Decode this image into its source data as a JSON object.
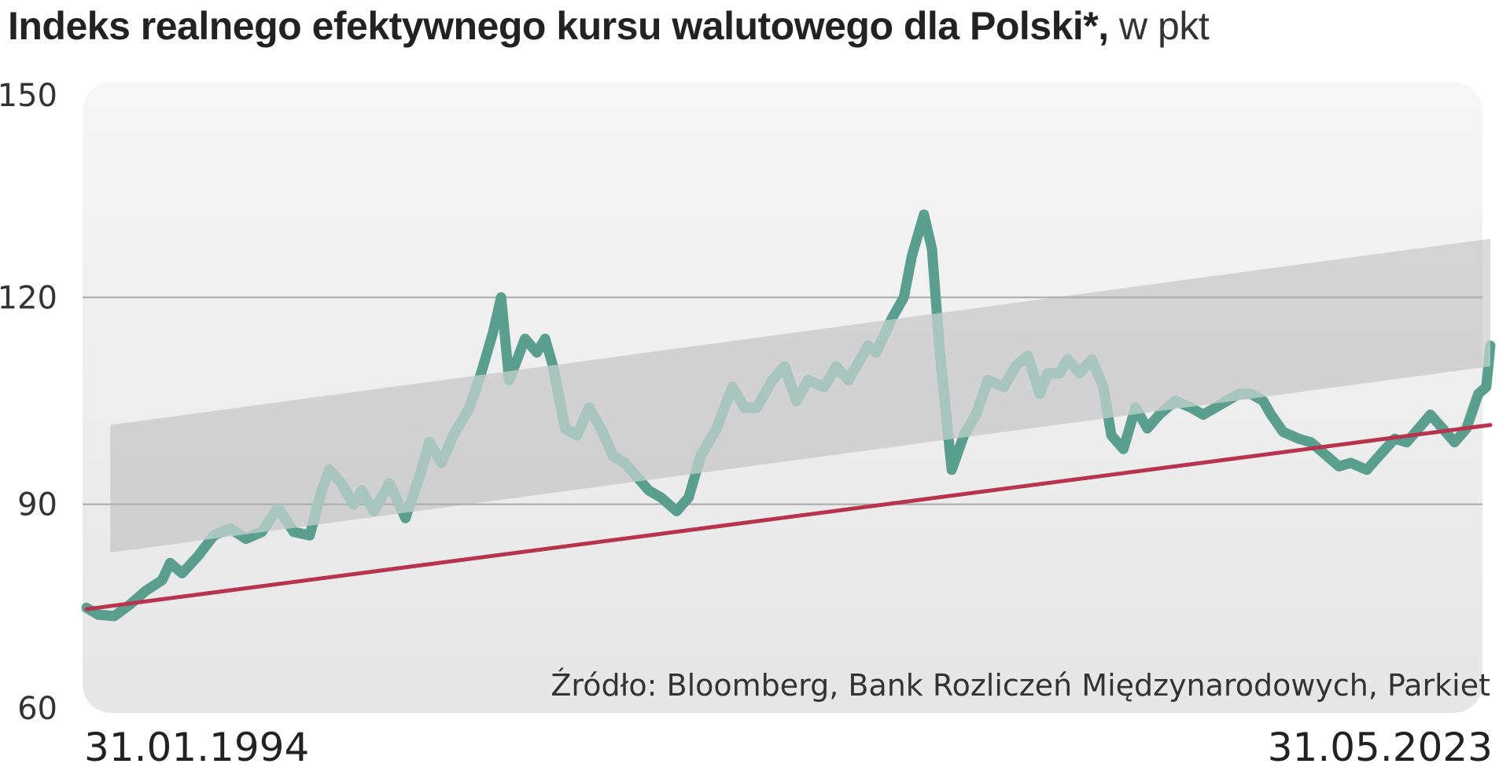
{
  "title": {
    "main": "Indeks realnego efektywnego kursu walutowego dla Polski*,",
    "unit": " w pkt"
  },
  "chart_data": {
    "type": "line",
    "ylim": [
      60,
      150
    ],
    "yticks": [
      "150",
      "120",
      "90",
      "60"
    ],
    "xlim": [
      "1994-01-31",
      "2023-05-31"
    ],
    "x_start_label": "31.01.1994",
    "x_end_label": "31.05.2023",
    "source": "Źródło: Bloomberg, Bank Rozliczeń Międzynarodowych, Parkiet",
    "trend_line": {
      "start": [
        "1994-01-31",
        74.8
      ],
      "end": [
        "2023-05-31",
        101.5
      ]
    },
    "band": {
      "start": {
        "date": "1994-07-31",
        "low": 83,
        "high": 101.5
      },
      "end": {
        "date": "2023-05-31",
        "low": 110,
        "high": 128.5
      }
    },
    "series": [
      {
        "color": "#5a9e8e",
        "points": [
          [
            "1994-01-31",
            75
          ],
          [
            "1994-04-30",
            74
          ],
          [
            "1994-08-31",
            73.8
          ],
          [
            "1994-12-31",
            75.5
          ],
          [
            "1995-04-30",
            77.5
          ],
          [
            "1995-08-31",
            79
          ],
          [
            "1995-10-31",
            81.5
          ],
          [
            "1996-01-31",
            80
          ],
          [
            "1996-05-31",
            82.5
          ],
          [
            "1996-09-30",
            85.5
          ],
          [
            "1997-01-31",
            86.5
          ],
          [
            "1997-05-31",
            85
          ],
          [
            "1997-09-30",
            86
          ],
          [
            "1998-01-31",
            89.5
          ],
          [
            "1998-05-31",
            86
          ],
          [
            "1998-09-30",
            85.5
          ],
          [
            "1998-12-31",
            92
          ],
          [
            "1999-02-28",
            95
          ],
          [
            "1999-05-31",
            93
          ],
          [
            "1999-08-31",
            90
          ],
          [
            "1999-10-31",
            92
          ],
          [
            "2000-01-31",
            89
          ],
          [
            "2000-05-31",
            93
          ],
          [
            "2000-09-30",
            88
          ],
          [
            "2001-01-31",
            95
          ],
          [
            "2001-03-31",
            99
          ],
          [
            "2001-06-30",
            96
          ],
          [
            "2001-09-30",
            100
          ],
          [
            "2002-01-31",
            104
          ],
          [
            "2002-04-30",
            109
          ],
          [
            "2002-07-31",
            115
          ],
          [
            "2002-09-30",
            120
          ],
          [
            "2002-11-30",
            108
          ],
          [
            "2003-03-31",
            114
          ],
          [
            "2003-06-30",
            112
          ],
          [
            "2003-08-31",
            114
          ],
          [
            "2003-10-31",
            110
          ],
          [
            "2004-01-31",
            101
          ],
          [
            "2004-04-30",
            100
          ],
          [
            "2004-07-31",
            104
          ],
          [
            "2004-10-31",
            101
          ],
          [
            "2005-01-31",
            97
          ],
          [
            "2005-04-30",
            96
          ],
          [
            "2005-07-31",
            94
          ],
          [
            "2005-10-31",
            92
          ],
          [
            "2006-01-31",
            91
          ],
          [
            "2006-05-31",
            89
          ],
          [
            "2006-08-31",
            91
          ],
          [
            "2006-11-30",
            97
          ],
          [
            "2007-03-31",
            101
          ],
          [
            "2007-07-31",
            107
          ],
          [
            "2007-10-31",
            104
          ],
          [
            "2008-01-31",
            104
          ],
          [
            "2008-05-31",
            108
          ],
          [
            "2008-08-31",
            110
          ],
          [
            "2008-11-30",
            105
          ],
          [
            "2009-02-28",
            108
          ],
          [
            "2009-06-30",
            107
          ],
          [
            "2009-09-30",
            110
          ],
          [
            "2009-12-31",
            108
          ],
          [
            "2010-05-31",
            113
          ],
          [
            "2010-07-31",
            112
          ],
          [
            "2010-11-30",
            117
          ],
          [
            "2011-02-28",
            120
          ],
          [
            "2011-04-30",
            126
          ],
          [
            "2011-07-31",
            132
          ],
          [
            "2011-09-30",
            127
          ],
          [
            "2011-11-30",
            112
          ],
          [
            "2012-02-28",
            95
          ],
          [
            "2012-05-31",
            100
          ],
          [
            "2012-08-31",
            103
          ],
          [
            "2012-11-30",
            108
          ],
          [
            "2013-03-31",
            107
          ],
          [
            "2013-06-30",
            110
          ],
          [
            "2013-09-30",
            111.5
          ],
          [
            "2013-12-31",
            106
          ],
          [
            "2014-02-28",
            109
          ],
          [
            "2014-05-31",
            109
          ],
          [
            "2014-07-31",
            111
          ],
          [
            "2014-10-31",
            109
          ],
          [
            "2015-01-31",
            111
          ],
          [
            "2015-04-30",
            107
          ],
          [
            "2015-06-30",
            100
          ],
          [
            "2015-09-30",
            98
          ],
          [
            "2015-12-31",
            104
          ],
          [
            "2016-03-31",
            101
          ],
          [
            "2016-06-30",
            103
          ],
          [
            "2016-10-31",
            105
          ],
          [
            "2017-02-28",
            104
          ],
          [
            "2017-05-31",
            103
          ],
          [
            "2017-08-31",
            104
          ],
          [
            "2017-11-30",
            105
          ],
          [
            "2018-02-28",
            106
          ],
          [
            "2018-05-31",
            106
          ],
          [
            "2018-08-31",
            105
          ],
          [
            "2018-10-31",
            103
          ],
          [
            "2019-01-31",
            100.5
          ],
          [
            "2019-05-31",
            99.5
          ],
          [
            "2019-08-31",
            99
          ],
          [
            "2019-12-31",
            97
          ],
          [
            "2020-03-31",
            95.5
          ],
          [
            "2020-06-30",
            96
          ],
          [
            "2020-10-31",
            95
          ],
          [
            "2021-01-31",
            97
          ],
          [
            "2021-05-31",
            99.5
          ],
          [
            "2021-08-31",
            99
          ],
          [
            "2021-11-30",
            101
          ],
          [
            "2022-02-28",
            103
          ],
          [
            "2022-05-31",
            101
          ],
          [
            "2022-08-31",
            99
          ],
          [
            "2022-11-30",
            101
          ],
          [
            "2023-02-28",
            106
          ],
          [
            "2023-04-30",
            107
          ],
          [
            "2023-05-31",
            113
          ]
        ]
      }
    ]
  }
}
